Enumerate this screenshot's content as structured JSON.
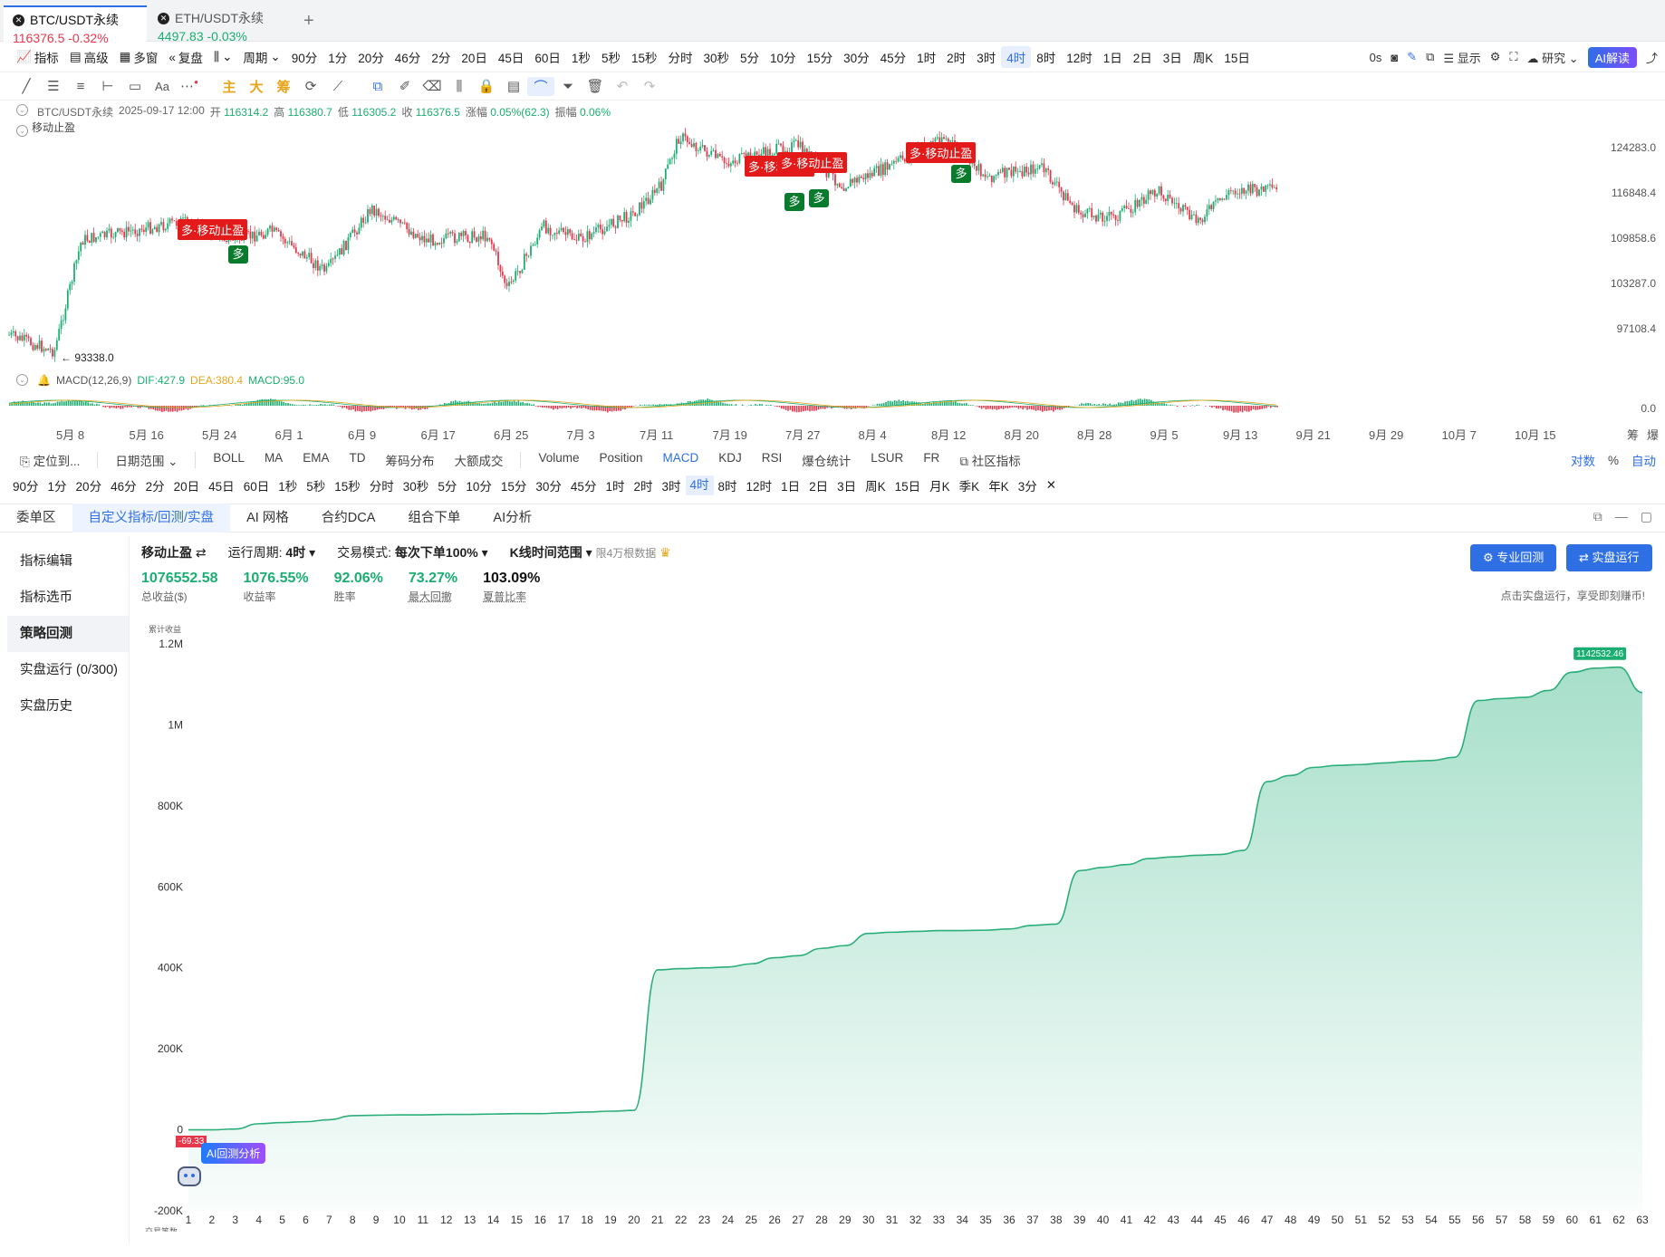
{
  "tabs": [
    {
      "symbol": "BTC/USDT永续",
      "price": "116376.5",
      "change": "-0.32%"
    },
    {
      "symbol": "ETH/USDT永续",
      "price": "4497.83",
      "change": "-0.03%"
    }
  ],
  "toolbar": {
    "indicator": "指标",
    "advanced": "高级",
    "multi": "多窗",
    "replay": "复盘",
    "period": "周期",
    "periods": [
      "90分",
      "1分",
      "20分",
      "46分",
      "2分",
      "20日",
      "45日",
      "60日",
      "1秒",
      "5秒",
      "15秒",
      "分时",
      "30秒",
      "5分",
      "10分",
      "15分",
      "30分",
      "45分",
      "1时",
      "2时",
      "3时",
      "4时",
      "8时",
      "12时",
      "1日",
      "2日",
      "3日",
      "周K",
      "15日"
    ],
    "selected_period": "4时",
    "right": {
      "timer": "0s",
      "display": "显示",
      "research": "研究",
      "ai": "AI解读"
    }
  },
  "drawing_tools": [
    "主",
    "大",
    "筹"
  ],
  "info": {
    "symbol": "BTC/USDT永续",
    "datetime": "2025-09-17 12:00",
    "open_label": "开",
    "open": "116314.2",
    "high_label": "高",
    "high": "116380.7",
    "low_label": "低",
    "low": "116305.2",
    "close_label": "收",
    "close": "116376.5",
    "chg_label": "涨幅",
    "chg": "0.05%(62.3)",
    "amp_label": "振幅",
    "amp": "0.06%",
    "indicator": "移动止盈"
  },
  "price_chart": {
    "y_labels": [
      "124283.0",
      "116848.4",
      "109858.6",
      "103287.0",
      "97108.4"
    ],
    "low_marker": "← 93338.0",
    "signals": [
      {
        "type": "sell",
        "text": "多·移动止盈"
      },
      {
        "type": "buy",
        "text": "多"
      },
      {
        "type": "sell",
        "text": "多·移动止盈"
      },
      {
        "type": "sell",
        "text": "多·移动止盈"
      },
      {
        "type": "buy",
        "text": "多"
      },
      {
        "type": "buy",
        "text": "多"
      },
      {
        "type": "sell",
        "text": "多·移动止盈"
      },
      {
        "type": "buy",
        "text": "多"
      }
    ]
  },
  "macd": {
    "name": "MACD(12,26,9)",
    "dif": "DIF:427.9",
    "dea": "DEA:380.4",
    "macd": "MACD:95.0",
    "zero": "0.0"
  },
  "x_axis": [
    "5月 8",
    "5月 16",
    "5月 24",
    "6月 1",
    "6月 9",
    "6月 17",
    "6月 25",
    "7月 3",
    "7月 11",
    "7月 19",
    "7月 27",
    "8月 4",
    "8月 12",
    "8月 20",
    "8月 28",
    "9月 5",
    "9月 13",
    "9月 21",
    "9月 29",
    "10月 7",
    "10月 15"
  ],
  "x_axis_right": [
    "筹",
    "爆"
  ],
  "indicator_bar": {
    "locate": "定位到...",
    "date_range": "日期范围",
    "main": [
      "BOLL",
      "MA",
      "EMA",
      "TD",
      "筹码分布",
      "大额成交"
    ],
    "sub": [
      "Volume",
      "Position",
      "MACD",
      "KDJ",
      "RSI",
      "爆仓统计",
      "LSUR",
      "FR"
    ],
    "selected_sub": "MACD",
    "community": "社区指标",
    "right": [
      "对数",
      "%",
      "自动"
    ]
  },
  "period_bar": [
    "90分",
    "1分",
    "20分",
    "46分",
    "2分",
    "20日",
    "45日",
    "60日",
    "1秒",
    "5秒",
    "15秒",
    "分时",
    "30秒",
    "5分",
    "10分",
    "15分",
    "30分",
    "45分",
    "1时",
    "2时",
    "3时",
    "4时",
    "8时",
    "12时",
    "1日",
    "2日",
    "3日",
    "周K",
    "15日",
    "月K",
    "季K",
    "年K",
    "3分"
  ],
  "bottom_tabs": [
    "委单区",
    "自定义指标/回测/实盘",
    "AI 网格",
    "合约DCA",
    "组合下单",
    "AI分析"
  ],
  "bottom_selected": "自定义指标/回测/实盘",
  "sidebar": [
    "指标编辑",
    "指标选币",
    "策略回测",
    "实盘运行 (0/300)",
    "实盘历史"
  ],
  "sidebar_selected": "策略回测",
  "strategy": {
    "name": "移动止盈",
    "cycle_label": "运行周期:",
    "cycle": "4时",
    "mode_label": "交易模式:",
    "mode": "每次下单100%",
    "kline_range": "K线时间范围",
    "limit": "限4万根数据"
  },
  "stats": [
    {
      "value": "1076552.58",
      "label": "总收益($)"
    },
    {
      "value": "1076.55%",
      "label": "收益率"
    },
    {
      "value": "92.06%",
      "label": "胜率"
    },
    {
      "value": "73.27%",
      "label": "最大回撤"
    },
    {
      "value": "103.09%",
      "label": "夏普比率"
    }
  ],
  "buttons": {
    "pro_backtest": "专业回测",
    "live_run": "实盘运行"
  },
  "hint": "点击实盘运行，享受即刻赚币!",
  "chart_data": {
    "type": "area",
    "ylabel": "累计收益",
    "xlabel": "交易笔数",
    "ylim": [
      -200000,
      1200000
    ],
    "y_ticks": [
      "1.2M",
      "1M",
      "800K",
      "600K",
      "400K",
      "200K",
      "0",
      "-200K"
    ],
    "x": [
      1,
      2,
      3,
      4,
      5,
      6,
      7,
      8,
      9,
      10,
      11,
      12,
      13,
      14,
      15,
      16,
      17,
      18,
      19,
      20,
      21,
      22,
      23,
      24,
      25,
      26,
      27,
      28,
      29,
      30,
      31,
      32,
      33,
      34,
      35,
      36,
      37,
      38,
      39,
      40,
      41,
      42,
      43,
      44,
      45,
      46,
      47,
      48,
      49,
      50,
      51,
      52,
      53,
      54,
      55,
      56,
      57,
      58,
      59,
      60,
      61,
      62,
      63
    ],
    "values": [
      0,
      0,
      2000,
      15000,
      18000,
      20000,
      25000,
      35000,
      36000,
      37000,
      37000,
      38000,
      38000,
      39000,
      40000,
      40000,
      42000,
      44000,
      46000,
      48000,
      395000,
      398000,
      400000,
      402000,
      410000,
      425000,
      430000,
      448000,
      455000,
      485000,
      488000,
      490000,
      492000,
      492000,
      493000,
      496000,
      505000,
      508000,
      640000,
      648000,
      655000,
      670000,
      674000,
      678000,
      680000,
      690000,
      860000,
      875000,
      895000,
      900000,
      902000,
      906000,
      910000,
      912000,
      920000,
      1060000,
      1065000,
      1068000,
      1085000,
      1130000,
      1140000,
      1142532.46,
      1080000
    ],
    "max_label": "1142532.46",
    "min_label": "-69.33",
    "ai_label": "AI回测分析"
  }
}
